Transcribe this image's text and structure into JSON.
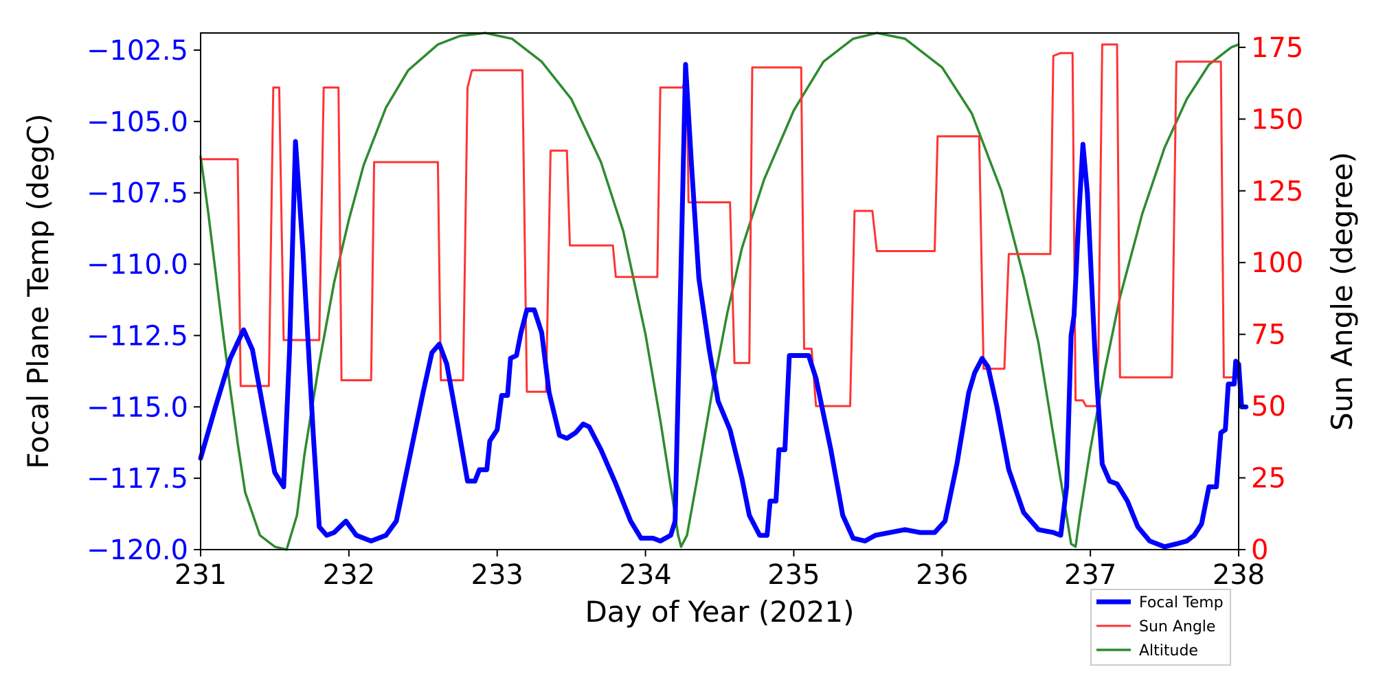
{
  "chart_data": {
    "type": "line",
    "xlabel": "Day of Year (2021)",
    "ylabel_left": "Focal Plane Temp (degC)",
    "ylabel_right": "Sun Angle (degree)",
    "xlim": [
      231,
      238
    ],
    "ylim_left": [
      -120.0,
      -101.9
    ],
    "ylim_right": [
      0,
      180
    ],
    "x_ticks": [
      231,
      232,
      233,
      234,
      235,
      236,
      237,
      238
    ],
    "x_tick_labels": [
      "231",
      "232",
      "233",
      "234",
      "235",
      "236",
      "237",
      "238"
    ],
    "y_left_ticks": [
      -102.5,
      -105.0,
      -107.5,
      -110.0,
      -112.5,
      -115.0,
      -117.5,
      -120.0
    ],
    "y_left_tick_labels": [
      "−102.5",
      "−105.0",
      "−107.5",
      "−110.0",
      "−112.5",
      "−115.0",
      "−117.5",
      "−120.0"
    ],
    "y_right_ticks": [
      175,
      150,
      125,
      100,
      75,
      50,
      25,
      0
    ],
    "y_right_tick_labels": [
      "175",
      "150",
      "125",
      "100",
      "75",
      "50",
      "25",
      "0"
    ],
    "grid": false,
    "legend_position": "bottom-right, below plot",
    "colors": {
      "left_axis": "#0000ff",
      "right_axis": "#ff0000",
      "focal": "#0000ff",
      "sun": "#ff3333",
      "altitude": "#2e8b2e"
    },
    "series": [
      {
        "name": "Focal Temp",
        "axis": "left",
        "points": [
          [
            231.0,
            -116.8
          ],
          [
            231.1,
            -115.0
          ],
          [
            231.2,
            -113.3
          ],
          [
            231.29,
            -112.3
          ],
          [
            231.35,
            -113.0
          ],
          [
            231.42,
            -115.0
          ],
          [
            231.5,
            -117.3
          ],
          [
            231.56,
            -117.8
          ],
          [
            231.6,
            -113.0
          ],
          [
            231.64,
            -105.7
          ],
          [
            231.69,
            -109.5
          ],
          [
            231.76,
            -116.0
          ],
          [
            231.8,
            -119.2
          ],
          [
            231.85,
            -119.5
          ],
          [
            231.9,
            -119.4
          ],
          [
            231.98,
            -119.0
          ],
          [
            232.05,
            -119.5
          ],
          [
            232.15,
            -119.7
          ],
          [
            232.25,
            -119.5
          ],
          [
            232.32,
            -119.0
          ],
          [
            232.4,
            -117.0
          ],
          [
            232.5,
            -114.5
          ],
          [
            232.56,
            -113.1
          ],
          [
            232.61,
            -112.8
          ],
          [
            232.66,
            -113.5
          ],
          [
            232.73,
            -115.5
          ],
          [
            232.8,
            -117.6
          ],
          [
            232.85,
            -117.6
          ],
          [
            232.88,
            -117.2
          ],
          [
            232.93,
            -117.2
          ],
          [
            232.95,
            -116.2
          ],
          [
            233.0,
            -115.8
          ],
          [
            233.03,
            -114.6
          ],
          [
            233.07,
            -114.6
          ],
          [
            233.09,
            -113.3
          ],
          [
            233.13,
            -113.2
          ],
          [
            233.16,
            -112.4
          ],
          [
            233.2,
            -111.6
          ],
          [
            233.25,
            -111.6
          ],
          [
            233.3,
            -112.4
          ],
          [
            233.35,
            -114.5
          ],
          [
            233.42,
            -116.0
          ],
          [
            233.47,
            -116.1
          ],
          [
            233.53,
            -115.9
          ],
          [
            233.58,
            -115.6
          ],
          [
            233.62,
            -115.7
          ],
          [
            233.7,
            -116.5
          ],
          [
            233.8,
            -117.7
          ],
          [
            233.9,
            -119.0
          ],
          [
            233.97,
            -119.6
          ],
          [
            234.05,
            -119.6
          ],
          [
            234.1,
            -119.7
          ],
          [
            234.17,
            -119.5
          ],
          [
            234.2,
            -119.0
          ],
          [
            234.24,
            -110.0
          ],
          [
            234.27,
            -103.0
          ],
          [
            234.31,
            -106.5
          ],
          [
            234.36,
            -110.5
          ],
          [
            234.43,
            -113.0
          ],
          [
            234.49,
            -114.8
          ],
          [
            234.57,
            -115.8
          ],
          [
            234.65,
            -117.5
          ],
          [
            234.7,
            -118.8
          ],
          [
            234.77,
            -119.5
          ],
          [
            234.82,
            -119.5
          ],
          [
            234.84,
            -118.3
          ],
          [
            234.88,
            -118.3
          ],
          [
            234.9,
            -116.5
          ],
          [
            234.94,
            -116.5
          ],
          [
            234.97,
            -113.2
          ],
          [
            235.05,
            -113.2
          ],
          [
            235.1,
            -113.2
          ],
          [
            235.15,
            -114.0
          ],
          [
            235.25,
            -116.5
          ],
          [
            235.33,
            -118.8
          ],
          [
            235.4,
            -119.6
          ],
          [
            235.48,
            -119.7
          ],
          [
            235.55,
            -119.5
          ],
          [
            235.65,
            -119.4
          ],
          [
            235.75,
            -119.3
          ],
          [
            235.85,
            -119.4
          ],
          [
            235.95,
            -119.4
          ],
          [
            236.02,
            -119.0
          ],
          [
            236.1,
            -117.0
          ],
          [
            236.18,
            -114.5
          ],
          [
            236.22,
            -113.8
          ],
          [
            236.27,
            -113.3
          ],
          [
            236.31,
            -113.6
          ],
          [
            236.37,
            -115.0
          ],
          [
            236.45,
            -117.2
          ],
          [
            236.55,
            -118.7
          ],
          [
            236.65,
            -119.3
          ],
          [
            236.75,
            -119.4
          ],
          [
            236.8,
            -119.5
          ],
          [
            236.84,
            -117.8
          ],
          [
            236.87,
            -112.5
          ],
          [
            236.89,
            -111.8
          ],
          [
            236.92,
            -108.5
          ],
          [
            236.95,
            -105.8
          ],
          [
            236.98,
            -107.5
          ],
          [
            237.03,
            -113.0
          ],
          [
            237.08,
            -117.0
          ],
          [
            237.13,
            -117.6
          ],
          [
            237.18,
            -117.7
          ],
          [
            237.25,
            -118.3
          ],
          [
            237.32,
            -119.2
          ],
          [
            237.4,
            -119.7
          ],
          [
            237.5,
            -119.9
          ],
          [
            237.58,
            -119.8
          ],
          [
            237.65,
            -119.7
          ],
          [
            237.7,
            -119.5
          ],
          [
            237.75,
            -119.1
          ],
          [
            237.8,
            -117.8
          ],
          [
            237.85,
            -117.8
          ],
          [
            237.88,
            -115.9
          ],
          [
            237.91,
            -115.8
          ],
          [
            237.93,
            -114.2
          ],
          [
            237.97,
            -114.2
          ],
          [
            237.98,
            -113.4
          ],
          [
            238.0,
            -113.5
          ],
          [
            238.02,
            -115.0
          ],
          [
            238.05,
            -115.0
          ]
        ]
      },
      {
        "name": "Sun Angle",
        "axis": "right",
        "points": [
          [
            231.0,
            136
          ],
          [
            231.25,
            136
          ],
          [
            231.27,
            57
          ],
          [
            231.46,
            57
          ],
          [
            231.49,
            161
          ],
          [
            231.53,
            161
          ],
          [
            231.56,
            73
          ],
          [
            231.8,
            73
          ],
          [
            231.83,
            161
          ],
          [
            231.93,
            161
          ],
          [
            231.95,
            59
          ],
          [
            232.15,
            59
          ],
          [
            232.17,
            135
          ],
          [
            232.6,
            135
          ],
          [
            232.62,
            59
          ],
          [
            232.77,
            59
          ],
          [
            232.8,
            161
          ],
          [
            232.83,
            167
          ],
          [
            233.17,
            167
          ],
          [
            233.2,
            55
          ],
          [
            233.33,
            55
          ],
          [
            233.36,
            139
          ],
          [
            233.47,
            139
          ],
          [
            233.49,
            106
          ],
          [
            233.78,
            106
          ],
          [
            233.8,
            95
          ],
          [
            234.08,
            95
          ],
          [
            234.1,
            161
          ],
          [
            234.25,
            161
          ],
          [
            234.28,
            166
          ],
          [
            234.29,
            121
          ],
          [
            234.57,
            121
          ],
          [
            234.6,
            65
          ],
          [
            234.7,
            65
          ],
          [
            234.72,
            168
          ],
          [
            235.05,
            168
          ],
          [
            235.07,
            70
          ],
          [
            235.12,
            70
          ],
          [
            235.15,
            50
          ],
          [
            235.38,
            50
          ],
          [
            235.41,
            118
          ],
          [
            235.53,
            118
          ],
          [
            235.56,
            104
          ],
          [
            235.95,
            104
          ],
          [
            235.97,
            144
          ],
          [
            236.25,
            144
          ],
          [
            236.28,
            63
          ],
          [
            236.42,
            63
          ],
          [
            236.45,
            103
          ],
          [
            236.73,
            103
          ],
          [
            236.75,
            172
          ],
          [
            236.8,
            173
          ],
          [
            236.88,
            173
          ],
          [
            236.9,
            52
          ],
          [
            236.95,
            52
          ],
          [
            236.97,
            50
          ],
          [
            237.05,
            50
          ],
          [
            237.08,
            176
          ],
          [
            237.18,
            176
          ],
          [
            237.2,
            60
          ],
          [
            237.55,
            60
          ],
          [
            237.58,
            170
          ],
          [
            237.88,
            170
          ],
          [
            237.9,
            60
          ],
          [
            238.0,
            60
          ]
        ]
      },
      {
        "name": "Altitude",
        "axis": "right",
        "points": [
          [
            231.0,
            137
          ],
          [
            231.05,
            118
          ],
          [
            231.1,
            97
          ],
          [
            231.15,
            76
          ],
          [
            231.2,
            56
          ],
          [
            231.25,
            37
          ],
          [
            231.3,
            20
          ],
          [
            231.4,
            5
          ],
          [
            231.5,
            1
          ],
          [
            231.58,
            0
          ],
          [
            231.65,
            12
          ],
          [
            231.7,
            33
          ],
          [
            231.8,
            65
          ],
          [
            231.9,
            93
          ],
          [
            232.0,
            115
          ],
          [
            232.1,
            134
          ],
          [
            232.25,
            154
          ],
          [
            232.4,
            167
          ],
          [
            232.6,
            176
          ],
          [
            232.75,
            179
          ],
          [
            232.92,
            180
          ],
          [
            233.1,
            178
          ],
          [
            233.3,
            170
          ],
          [
            233.5,
            157
          ],
          [
            233.7,
            135
          ],
          [
            233.85,
            111
          ],
          [
            234.0,
            75
          ],
          [
            234.1,
            45
          ],
          [
            234.17,
            22
          ],
          [
            234.22,
            5
          ],
          [
            234.24,
            1
          ],
          [
            234.28,
            5
          ],
          [
            234.35,
            25
          ],
          [
            234.45,
            55
          ],
          [
            234.55,
            82
          ],
          [
            234.65,
            105
          ],
          [
            234.8,
            129
          ],
          [
            235.0,
            153
          ],
          [
            235.2,
            170
          ],
          [
            235.4,
            178
          ],
          [
            235.56,
            180
          ],
          [
            235.75,
            178
          ],
          [
            236.0,
            168
          ],
          [
            236.2,
            152
          ],
          [
            236.4,
            125
          ],
          [
            236.55,
            95
          ],
          [
            236.65,
            72
          ],
          [
            236.75,
            40
          ],
          [
            236.82,
            18
          ],
          [
            236.87,
            2
          ],
          [
            236.9,
            1
          ],
          [
            236.93,
            12
          ],
          [
            237.0,
            35
          ],
          [
            237.1,
            63
          ],
          [
            237.2,
            88
          ],
          [
            237.35,
            117
          ],
          [
            237.5,
            140
          ],
          [
            237.65,
            157
          ],
          [
            237.8,
            169
          ],
          [
            237.95,
            175
          ],
          [
            238.0,
            176
          ]
        ]
      }
    ]
  }
}
